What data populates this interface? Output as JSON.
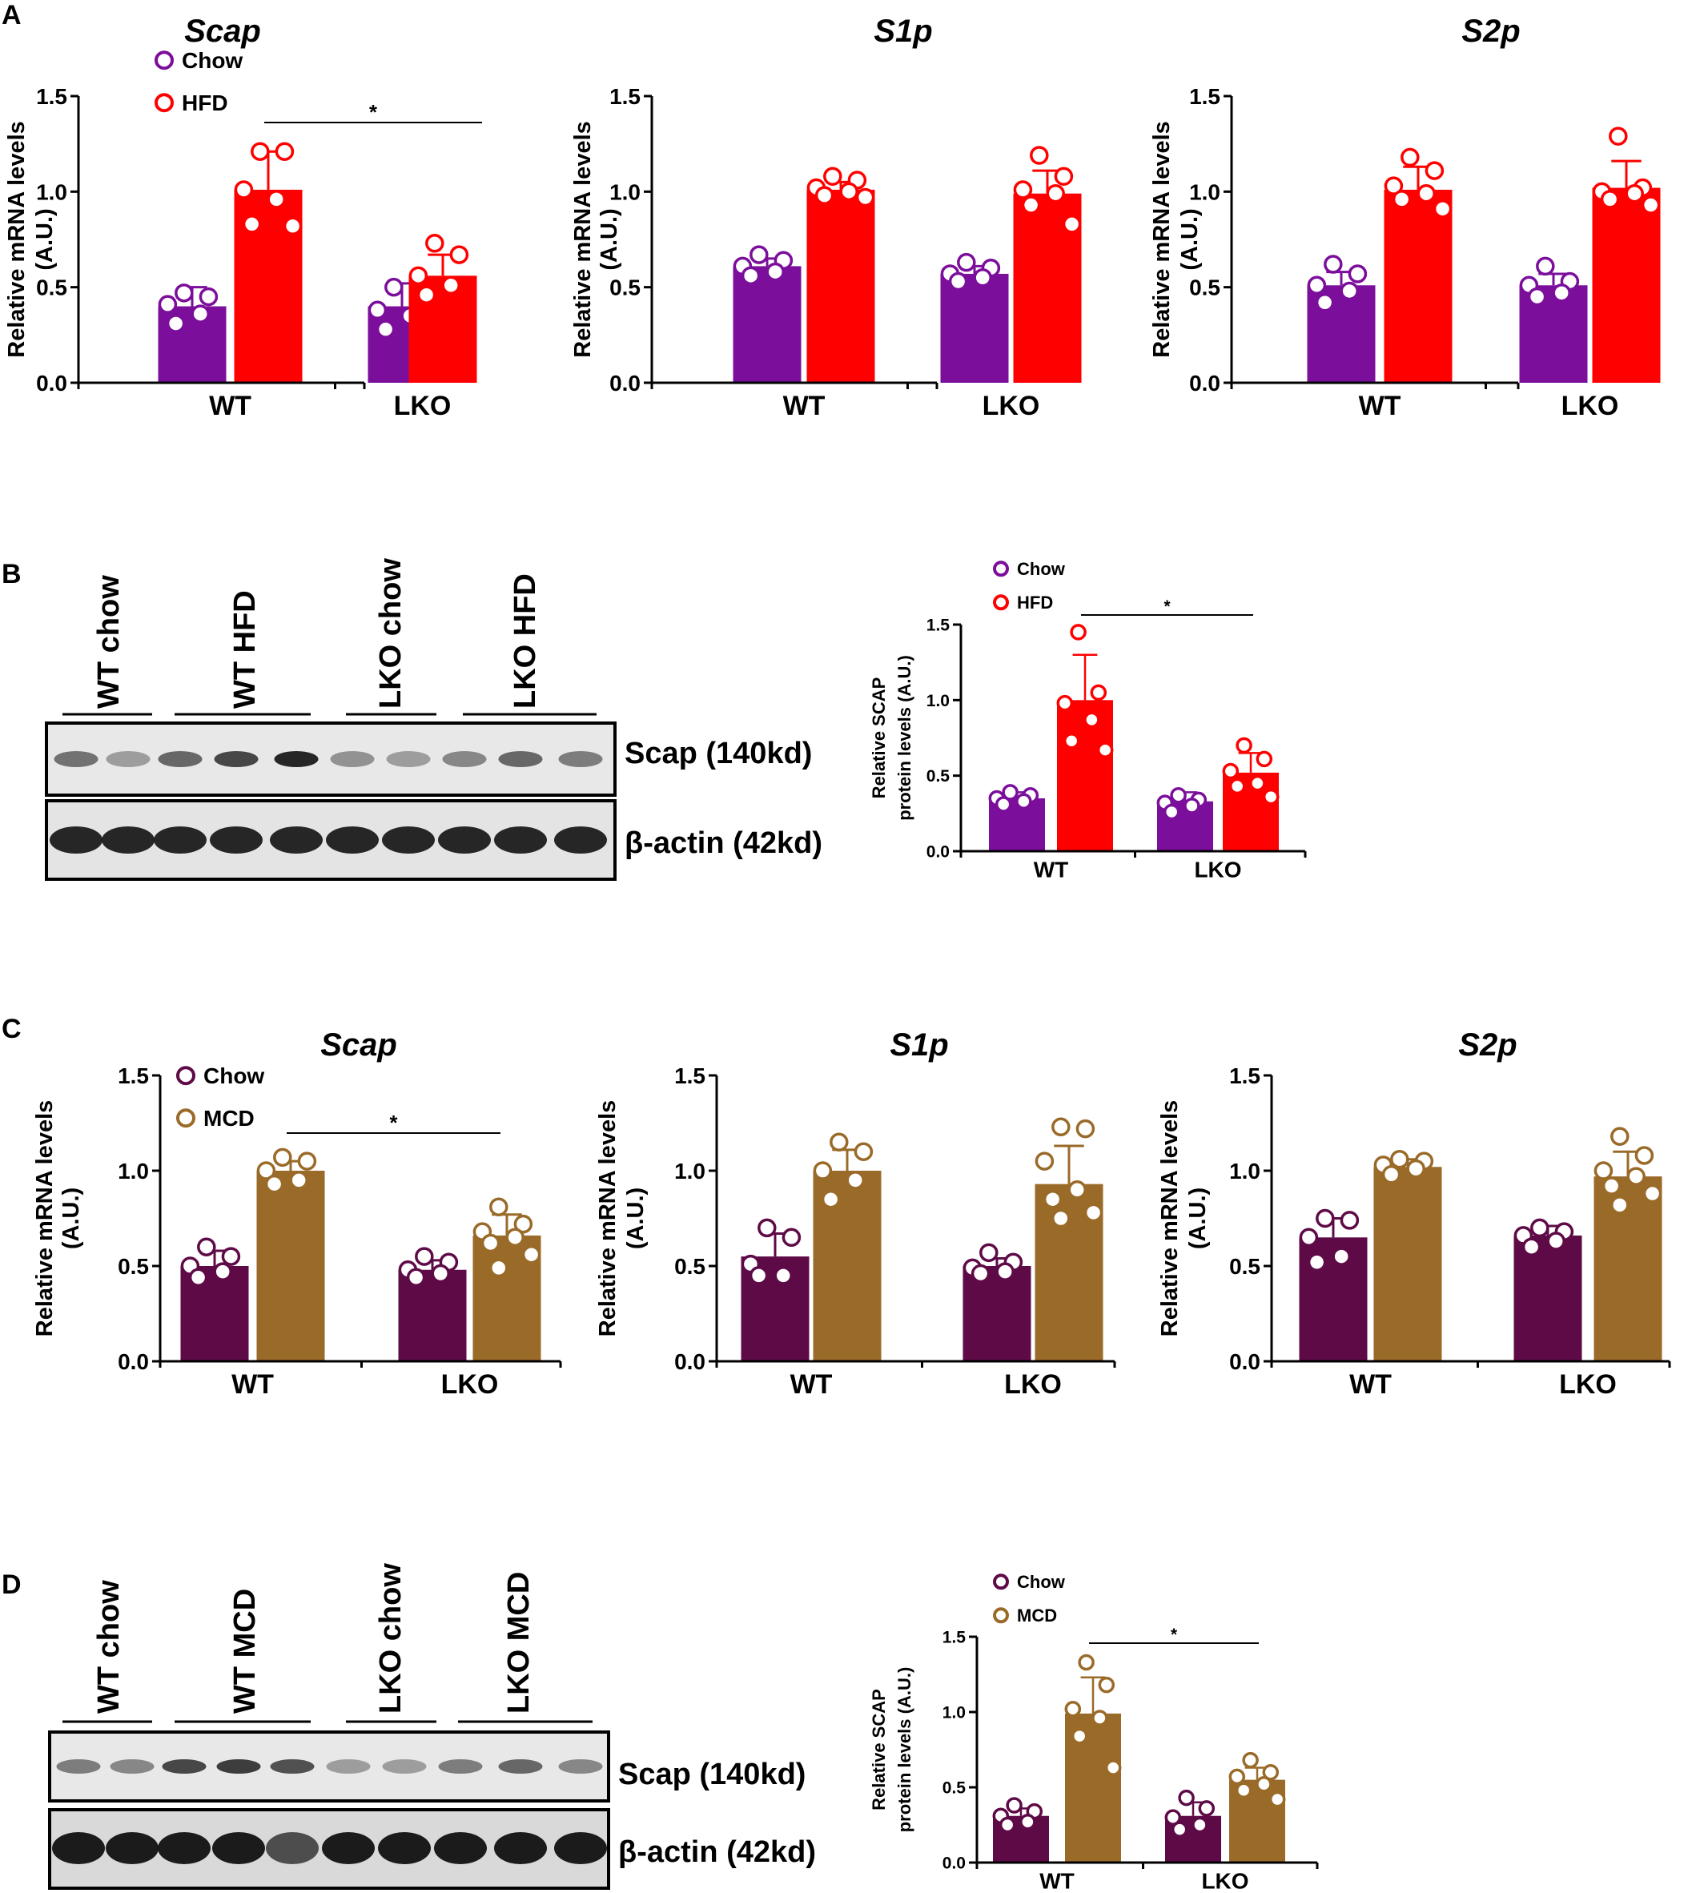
{
  "panel_letters": [
    "A",
    "B",
    "C",
    "D"
  ],
  "common": {
    "mrna_ylabel": [
      "Relative mRNA levels",
      "(A.U.)"
    ],
    "protein_ylabel": [
      "Relative SCAP",
      "protein levels (A.U.)"
    ],
    "yticks": [
      "0.0",
      "0.5",
      "1.0",
      "1.5"
    ],
    "categories": [
      "WT",
      "LKO"
    ],
    "sig_mark": "*"
  },
  "legends": {
    "hfd": [
      "Chow",
      "HFD"
    ],
    "mcd": [
      "Chow",
      "MCD"
    ]
  },
  "colors": {
    "chow_A": "#7B0E9B",
    "hfd": "#FF0000",
    "chow_C": "#5E0A47",
    "mcd": "#9A6A29"
  },
  "blots": {
    "B": {
      "lanes": [
        "WT chow",
        "WT HFD",
        "LKO chow",
        "LKO HFD"
      ],
      "bands": [
        "Scap (140kd)",
        "β-actin (42kd)"
      ]
    },
    "D": {
      "lanes": [
        "WT chow",
        "WT MCD",
        "LKO chow",
        "LKO MCD"
      ],
      "bands": [
        "Scap (140kd)",
        "β-actin (42kd)"
      ]
    }
  },
  "chart_data": [
    {
      "id": "A1",
      "panel": "A",
      "type": "bar",
      "title": "Scap",
      "xlabel": "",
      "ylabel": "Relative mRNA levels (A.U.)",
      "ylim": [
        0,
        1.5
      ],
      "categories": [
        "WT",
        "LKO"
      ],
      "legend": [
        "Chow",
        "HFD"
      ],
      "significance": [
        [
          "WT",
          "HFD"
        ],
        [
          "LKO",
          "HFD"
        ]
      ],
      "series": [
        {
          "name": "Chow",
          "values": [
            0.4,
            0.4
          ],
          "errors": [
            0.1,
            0.12
          ],
          "points": [
            [
              0.47,
              0.45,
              0.41,
              0.36,
              0.31
            ],
            [
              0.5,
              0.47,
              0.38,
              0.35,
              0.28
            ]
          ]
        },
        {
          "name": "HFD",
          "values": [
            1.01,
            0.56
          ],
          "errors": [
            0.2,
            0.11
          ],
          "points": [
            [
              1.21,
              1.21,
              1.01,
              0.96,
              0.83,
              0.82
            ],
            [
              0.73,
              0.67,
              0.56,
              0.51,
              0.46
            ]
          ]
        }
      ]
    },
    {
      "id": "A2",
      "panel": "A",
      "type": "bar",
      "title": "S1p",
      "xlabel": "",
      "ylabel": "Relative mRNA levels (A.U.)",
      "ylim": [
        0,
        1.5
      ],
      "categories": [
        "WT",
        "LKO"
      ],
      "legend": [],
      "significance": null,
      "series": [
        {
          "name": "Chow",
          "values": [
            0.61,
            0.57
          ],
          "errors": [
            0.04,
            0.04
          ],
          "points": [
            [
              0.67,
              0.64,
              0.61,
              0.58,
              0.56
            ],
            [
              0.63,
              0.6,
              0.57,
              0.55,
              0.53
            ]
          ]
        },
        {
          "name": "HFD",
          "values": [
            1.01,
            0.99
          ],
          "errors": [
            0.04,
            0.12
          ],
          "points": [
            [
              1.08,
              1.06,
              1.02,
              1.0,
              0.98,
              0.97
            ],
            [
              1.19,
              1.08,
              1.01,
              0.99,
              0.93,
              0.83
            ]
          ]
        }
      ]
    },
    {
      "id": "A3",
      "panel": "A",
      "type": "bar",
      "title": "S2p",
      "xlabel": "",
      "ylabel": "Relative mRNA levels (A.U.)",
      "ylim": [
        0,
        1.5
      ],
      "categories": [
        "WT",
        "LKO"
      ],
      "legend": [],
      "significance": null,
      "series": [
        {
          "name": "Chow",
          "values": [
            0.51,
            0.51
          ],
          "errors": [
            0.07,
            0.06
          ],
          "points": [
            [
              0.62,
              0.57,
              0.51,
              0.48,
              0.42
            ],
            [
              0.61,
              0.53,
              0.51,
              0.47,
              0.45
            ]
          ]
        },
        {
          "name": "HFD",
          "values": [
            1.01,
            1.02
          ],
          "errors": [
            0.12,
            0.14
          ],
          "points": [
            [
              1.18,
              1.11,
              1.03,
              0.99,
              0.96,
              0.91
            ],
            [
              1.29,
              1.02,
              1.0,
              0.99,
              0.96,
              0.93
            ]
          ]
        }
      ]
    },
    {
      "id": "B",
      "panel": "B",
      "type": "bar",
      "title": "",
      "xlabel": "",
      "ylabel": "Relative SCAP protein levels (A.U.)",
      "ylim": [
        0,
        1.5
      ],
      "categories": [
        "WT",
        "LKO"
      ],
      "legend": [
        "Chow",
        "HFD"
      ],
      "significance": [
        [
          "WT",
          "HFD"
        ],
        [
          "LKO",
          "HFD"
        ]
      ],
      "series": [
        {
          "name": "Chow",
          "values": [
            0.35,
            0.33
          ],
          "errors": [
            0.04,
            0.06
          ],
          "points": [
            [
              0.39,
              0.37,
              0.35,
              0.33,
              0.31
            ],
            [
              0.37,
              0.34,
              0.32,
              0.3,
              0.26
            ]
          ]
        },
        {
          "name": "HFD",
          "values": [
            1.0,
            0.52
          ],
          "errors": [
            0.3,
            0.13
          ],
          "points": [
            [
              1.45,
              1.05,
              0.98,
              0.87,
              0.73,
              0.67
            ],
            [
              0.7,
              0.61,
              0.53,
              0.45,
              0.43,
              0.36
            ]
          ]
        }
      ]
    },
    {
      "id": "C1",
      "panel": "C",
      "type": "bar",
      "title": "Scap",
      "xlabel": "",
      "ylabel": "Relative mRNA levels (A.U.)",
      "ylim": [
        0,
        1.5
      ],
      "categories": [
        "WT",
        "LKO"
      ],
      "legend": [
        "Chow",
        "MCD"
      ],
      "significance": [
        [
          "WT",
          "MCD"
        ],
        [
          "LKO",
          "MCD"
        ]
      ],
      "series": [
        {
          "name": "Chow",
          "values": [
            0.5,
            0.48
          ],
          "errors": [
            0.08,
            0.05
          ],
          "points": [
            [
              0.6,
              0.55,
              0.5,
              0.47,
              0.44
            ],
            [
              0.55,
              0.52,
              0.48,
              0.46,
              0.44
            ]
          ]
        },
        {
          "name": "MCD",
          "values": [
            1.0,
            0.66
          ],
          "errors": [
            0.05,
            0.11
          ],
          "points": [
            [
              1.07,
              1.05,
              1.0,
              0.95,
              0.93
            ],
            [
              0.81,
              0.72,
              0.68,
              0.65,
              0.62,
              0.56,
              0.49
            ]
          ]
        }
      ]
    },
    {
      "id": "C2",
      "panel": "C",
      "type": "bar",
      "title": "S1p",
      "xlabel": "",
      "ylabel": "Relative mRNA levels (A.U.)",
      "ylim": [
        0,
        1.5
      ],
      "categories": [
        "WT",
        "LKO"
      ],
      "legend": [],
      "significance": null,
      "series": [
        {
          "name": "Chow",
          "values": [
            0.55,
            0.5
          ],
          "errors": [
            0.12,
            0.04
          ],
          "points": [
            [
              0.7,
              0.65,
              0.51,
              0.45,
              0.45
            ],
            [
              0.57,
              0.52,
              0.49,
              0.47,
              0.46
            ]
          ]
        },
        {
          "name": "MCD",
          "values": [
            1.0,
            0.93
          ],
          "errors": [
            0.11,
            0.2
          ],
          "points": [
            [
              1.15,
              1.1,
              1.0,
              0.95,
              0.85
            ],
            [
              1.23,
              1.22,
              1.05,
              0.9,
              0.85,
              0.78,
              0.75
            ]
          ]
        }
      ]
    },
    {
      "id": "C3",
      "panel": "C",
      "type": "bar",
      "title": "S2p",
      "xlabel": "",
      "ylabel": "Relative mRNA levels (A.U.)",
      "ylim": [
        0,
        1.5
      ],
      "categories": [
        "WT",
        "LKO"
      ],
      "legend": [],
      "significance": null,
      "series": [
        {
          "name": "Chow",
          "values": [
            0.65,
            0.66
          ],
          "errors": [
            0.1,
            0.05
          ],
          "points": [
            [
              0.75,
              0.74,
              0.65,
              0.55,
              0.52
            ],
            [
              0.7,
              0.68,
              0.66,
              0.63,
              0.6
            ]
          ]
        },
        {
          "name": "MCD",
          "values": [
            1.02,
            0.97
          ],
          "errors": [
            0.04,
            0.13
          ],
          "points": [
            [
              1.06,
              1.05,
              1.03,
              1.01,
              0.98
            ],
            [
              1.18,
              1.08,
              1.0,
              0.97,
              0.92,
              0.88,
              0.82
            ]
          ]
        }
      ]
    },
    {
      "id": "D",
      "panel": "D",
      "type": "bar",
      "title": "",
      "xlabel": "",
      "ylabel": "Relative SCAP protein levels (A.U.)",
      "ylim": [
        0,
        1.5
      ],
      "categories": [
        "WT",
        "LKO"
      ],
      "legend": [
        "Chow",
        "MCD"
      ],
      "significance": [
        [
          "WT",
          "MCD"
        ],
        [
          "LKO",
          "MCD"
        ]
      ],
      "series": [
        {
          "name": "Chow",
          "values": [
            0.31,
            0.31
          ],
          "errors": [
            0.05,
            0.09
          ],
          "points": [
            [
              0.38,
              0.34,
              0.31,
              0.27,
              0.25
            ],
            [
              0.43,
              0.36,
              0.3,
              0.25,
              0.22
            ]
          ]
        },
        {
          "name": "MCD",
          "values": [
            0.99,
            0.55
          ],
          "errors": [
            0.24,
            0.08
          ],
          "points": [
            [
              1.33,
              1.18,
              1.02,
              0.96,
              0.84,
              0.63
            ],
            [
              0.68,
              0.6,
              0.57,
              0.52,
              0.48,
              0.42
            ]
          ]
        }
      ]
    }
  ]
}
